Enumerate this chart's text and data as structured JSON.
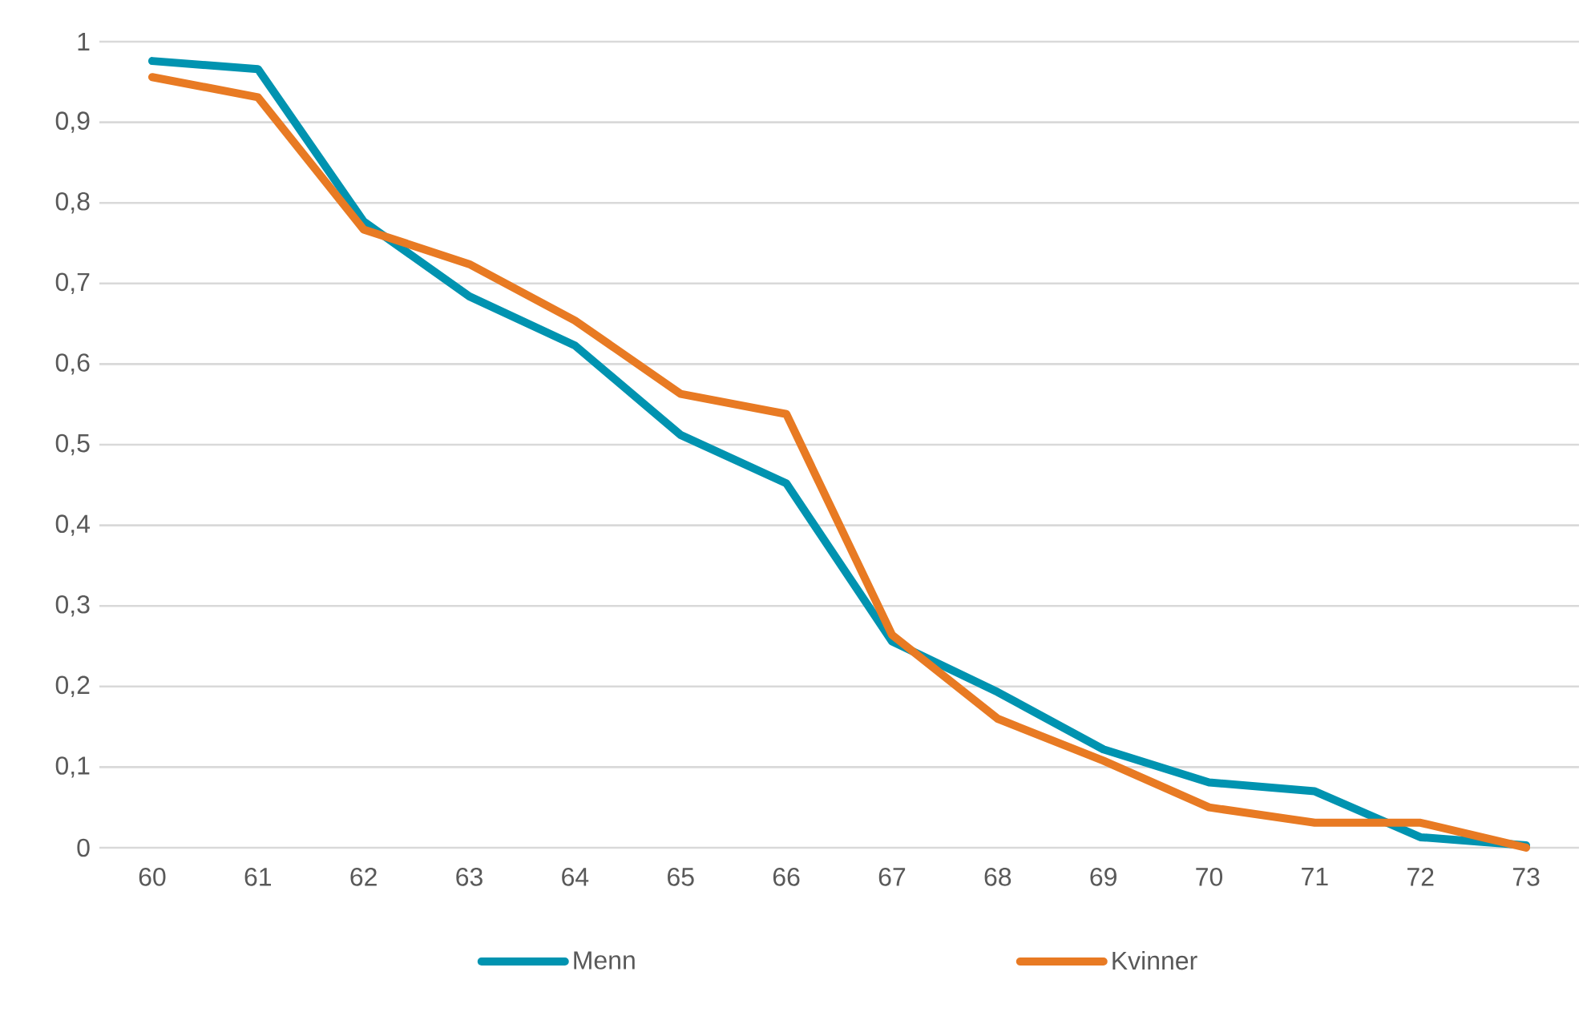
{
  "chart_data": {
    "type": "line",
    "categories": [
      "60",
      "61",
      "62",
      "63",
      "64",
      "65",
      "66",
      "67",
      "68",
      "69",
      "70",
      "71",
      "72",
      "73"
    ],
    "series": [
      {
        "name": "Menn",
        "color": "#0093b0",
        "values": [
          0.976,
          0.966,
          0.777,
          0.684,
          0.623,
          0.512,
          0.452,
          0.256,
          0.193,
          0.122,
          0.081,
          0.07,
          0.013,
          0.003
        ]
      },
      {
        "name": "Kvinner",
        "color": "#e87a23",
        "values": [
          0.956,
          0.931,
          0.767,
          0.724,
          0.654,
          0.563,
          0.538,
          0.264,
          0.16,
          0.108,
          0.05,
          0.031,
          0.031,
          0.0
        ]
      }
    ],
    "ylim": [
      0,
      1
    ],
    "yticks": [
      0,
      {
        "value": 0.1,
        "label": "0,1"
      },
      {
        "value": 0.2,
        "label": "0,2"
      },
      {
        "value": 0.3,
        "label": "0,3"
      },
      {
        "value": 0.4,
        "label": "0,4"
      },
      {
        "value": 0.5,
        "label": "0,5"
      },
      {
        "value": 0.6,
        "label": "0,6"
      },
      {
        "value": 0.7,
        "label": "0,7"
      },
      {
        "value": 0.8,
        "label": "0,8"
      },
      {
        "value": 0.9,
        "label": "0,9"
      },
      1
    ],
    "grid": "y",
    "legend": "bottom"
  }
}
